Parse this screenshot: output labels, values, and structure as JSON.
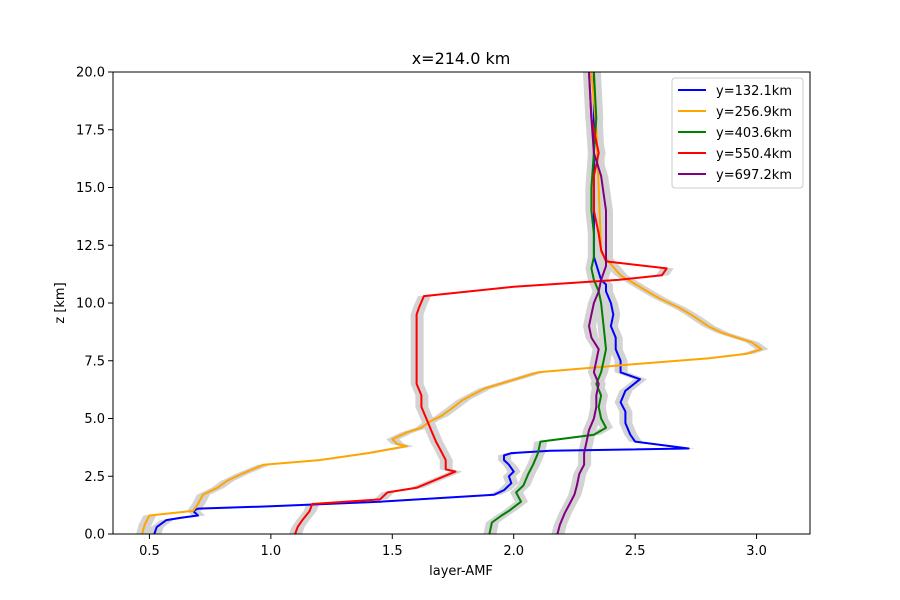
{
  "chart_data": {
    "type": "line",
    "title": "x=214.0 km",
    "xlabel": "layer-AMF",
    "ylabel": "z [km]",
    "xlim": [
      0.35,
      3.22
    ],
    "ylim": [
      0,
      20
    ],
    "xticks": [
      "0.5",
      "1.0",
      "1.5",
      "2.0",
      "2.5",
      "3.0"
    ],
    "xtick_values": [
      0.5,
      1.0,
      1.5,
      2.0,
      2.5,
      3.0
    ],
    "yticks": [
      "0.0",
      "2.5",
      "5.0",
      "7.5",
      "10.0",
      "12.5",
      "15.0",
      "17.5",
      "20.0"
    ],
    "ytick_values": [
      0,
      2.5,
      5.0,
      7.5,
      10.0,
      12.5,
      15.0,
      17.5,
      20.0
    ],
    "grid": false,
    "legend_position": "top-right",
    "uncertainty_band_color": "#d3d3d3",
    "series": [
      {
        "name": "y=132.1km",
        "color": "#0000ff",
        "x": [
          0.52,
          0.53,
          0.57,
          0.63,
          0.7,
          0.68,
          0.7,
          1.0,
          1.45,
          1.92,
          1.96,
          1.99,
          1.98,
          2.0,
          1.98,
          1.96,
          1.96,
          1.99,
          2.15,
          2.72,
          2.5,
          2.48,
          2.46,
          2.46,
          2.44,
          2.46,
          2.52,
          2.44,
          2.44,
          2.42,
          2.42,
          2.4,
          2.41,
          2.4,
          2.38,
          2.38,
          2.36,
          2.33,
          2.33,
          2.33
        ],
        "y": [
          0.0,
          0.3,
          0.6,
          0.7,
          0.8,
          1.0,
          1.1,
          1.2,
          1.4,
          1.7,
          1.9,
          2.2,
          2.5,
          2.7,
          3.0,
          3.2,
          3.4,
          3.5,
          3.6,
          3.7,
          4.0,
          4.3,
          4.8,
          5.3,
          5.7,
          6.2,
          6.7,
          7.0,
          7.5,
          8.0,
          8.5,
          9.0,
          9.5,
          10.0,
          10.5,
          10.8,
          11.0,
          12.0,
          16.0,
          20.0
        ]
      },
      {
        "name": "y=256.9km",
        "color": "#ffa500",
        "x": [
          0.47,
          0.48,
          0.5,
          0.68,
          0.7,
          0.72,
          0.78,
          0.82,
          0.88,
          0.97,
          1.2,
          1.4,
          1.56,
          1.52,
          1.5,
          1.56,
          1.62,
          1.66,
          1.7,
          1.74,
          1.79,
          1.88,
          2.1,
          2.55,
          2.8,
          2.96,
          3.02,
          2.98,
          2.86,
          2.8,
          2.73,
          2.68,
          2.6,
          2.55,
          2.44,
          2.39,
          2.36,
          2.35,
          2.34,
          2.32
        ],
        "y": [
          0.0,
          0.4,
          0.8,
          1.0,
          1.3,
          1.7,
          2.0,
          2.3,
          2.6,
          3.0,
          3.2,
          3.5,
          3.8,
          3.9,
          4.1,
          4.4,
          4.6,
          4.9,
          5.1,
          5.4,
          5.8,
          6.3,
          7.0,
          7.4,
          7.6,
          7.8,
          8.0,
          8.3,
          8.7,
          9.0,
          9.5,
          9.8,
          10.2,
          10.5,
          11.2,
          11.8,
          12.2,
          15.0,
          17.5,
          20.0
        ]
      },
      {
        "name": "y=403.6km",
        "color": "#008000",
        "x": [
          1.9,
          1.91,
          1.95,
          1.98,
          2.03,
          2.01,
          2.04,
          2.06,
          2.08,
          2.1,
          2.11,
          2.33,
          2.38,
          2.36,
          2.35,
          2.36,
          2.34,
          2.36,
          2.37,
          2.38,
          2.37,
          2.36,
          2.35,
          2.33,
          2.32,
          2.33,
          2.33,
          2.32,
          2.32,
          2.33,
          2.34,
          2.33
        ],
        "y": [
          0.0,
          0.5,
          0.8,
          1.0,
          1.4,
          1.8,
          2.1,
          2.6,
          3.0,
          3.5,
          4.0,
          4.3,
          4.6,
          5.0,
          5.5,
          6.0,
          6.5,
          7.0,
          7.5,
          8.0,
          9.0,
          10.0,
          10.5,
          11.0,
          11.5,
          12.0,
          13.0,
          14.0,
          15.0,
          16.5,
          18.0,
          20.0
        ]
      },
      {
        "name": "y=550.4km",
        "color": "#ff0000",
        "x": [
          1.1,
          1.11,
          1.13,
          1.16,
          1.17,
          1.45,
          1.48,
          1.6,
          1.76,
          1.72,
          1.72,
          1.7,
          1.68,
          1.66,
          1.64,
          1.62,
          1.62,
          1.6,
          1.6,
          1.6,
          1.6,
          1.6,
          1.61,
          1.63,
          2.0,
          2.43,
          2.61,
          2.63,
          2.38,
          2.36,
          2.35,
          2.33,
          2.33,
          2.35,
          2.32,
          2.31
        ],
        "y": [
          0.0,
          0.3,
          0.6,
          1.0,
          1.3,
          1.5,
          1.8,
          2.0,
          2.7,
          2.8,
          3.2,
          3.6,
          4.0,
          4.5,
          5.0,
          5.5,
          6.0,
          6.5,
          7.0,
          7.5,
          8.5,
          9.5,
          9.8,
          10.3,
          10.7,
          11.0,
          11.2,
          11.5,
          11.8,
          12.3,
          13.0,
          14.0,
          15.5,
          16.5,
          18.0,
          20.0
        ]
      },
      {
        "name": "y=697.2km",
        "color": "#800080",
        "x": [
          2.18,
          2.19,
          2.21,
          2.23,
          2.25,
          2.26,
          2.27,
          2.29,
          2.29,
          2.3,
          2.31,
          2.33,
          2.34,
          2.34,
          2.35,
          2.33,
          2.34,
          2.35,
          2.32,
          2.31,
          2.32,
          2.33,
          2.35,
          2.36,
          2.38,
          2.38,
          2.38,
          2.36,
          2.33,
          2.32,
          2.31
        ],
        "y": [
          0.0,
          0.4,
          0.9,
          1.3,
          1.7,
          2.1,
          2.6,
          3.0,
          3.5,
          4.0,
          4.5,
          5.0,
          5.5,
          6.0,
          6.5,
          7.0,
          7.5,
          8.0,
          8.5,
          9.0,
          9.5,
          10.0,
          10.5,
          11.0,
          11.6,
          12.5,
          14.0,
          15.5,
          16.5,
          18.0,
          20.0
        ]
      }
    ]
  }
}
